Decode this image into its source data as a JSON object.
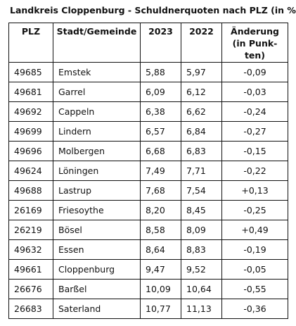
{
  "title": "Landkreis Cloppenburg - Schuldnerquoten nach PLZ (in %)",
  "table": {
    "headers": {
      "plz": "PLZ",
      "city": "Stadt/Gemeinde",
      "y2023": "2023",
      "y2022": "2022",
      "change": "Änderung (in Punk-ten)"
    },
    "rows": [
      {
        "plz": "49685",
        "city": "Emstek",
        "y2023": "5,88",
        "y2022": "5,97",
        "change": "-0,09"
      },
      {
        "plz": "49681",
        "city": "Garrel",
        "y2023": "6,09",
        "y2022": "6,12",
        "change": "-0,03"
      },
      {
        "plz": "49692",
        "city": "Cappeln",
        "y2023": "6,38",
        "y2022": "6,62",
        "change": "-0,24"
      },
      {
        "plz": "49699",
        "city": "Lindern",
        "y2023": "6,57",
        "y2022": "6,84",
        "change": "-0,27"
      },
      {
        "plz": "49696",
        "city": "Molbergen",
        "y2023": "6,68",
        "y2022": "6,83",
        "change": "-0,15"
      },
      {
        "plz": "49624",
        "city": "Löningen",
        "y2023": "7,49",
        "y2022": "7,71",
        "change": "-0,22"
      },
      {
        "plz": "49688",
        "city": "Lastrup",
        "y2023": "7,68",
        "y2022": "7,54",
        "change": "+0,13"
      },
      {
        "plz": "26169",
        "city": "Friesoythe",
        "y2023": "8,20",
        "y2022": "8,45",
        "change": "-0,25"
      },
      {
        "plz": "26219",
        "city": "Bösel",
        "y2023": "8,58",
        "y2022": "8,09",
        "change": "+0,49"
      },
      {
        "plz": "49632",
        "city": "Essen",
        "y2023": "8,64",
        "y2022": "8,83",
        "change": "-0,19"
      },
      {
        "plz": "49661",
        "city": "Cloppenburg",
        "y2023": "9,47",
        "y2022": "9,52",
        "change": "-0,05"
      },
      {
        "plz": "26676",
        "city": "Barßel",
        "y2023": "10,09",
        "y2022": "10,64",
        "change": "-0,55"
      },
      {
        "plz": "26683",
        "city": "Saterland",
        "y2023": "10,77",
        "y2022": "11,13",
        "change": "-0,36"
      }
    ]
  }
}
